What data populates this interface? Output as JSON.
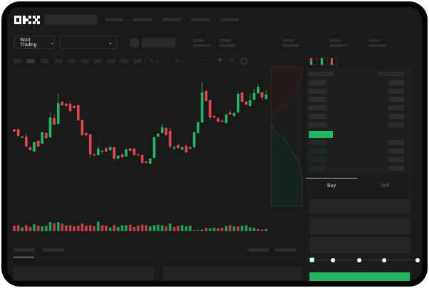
{
  "header": {
    "logo_text": "OKX"
  },
  "toolbar": {
    "market_select_label": "Spot Trading",
    "chevron": "⌄"
  },
  "trade": {
    "buy_tab": "Buy",
    "sell_tab": "Sell",
    "slider_percent": 0
  },
  "colors": {
    "up": "#22b863",
    "down": "#e0484e",
    "bg": "#1a1a1a",
    "accent": "#22b863"
  },
  "chart_data": {
    "type": "candlestick",
    "candles": [
      [
        118,
        119,
        114,
        115
      ],
      [
        118,
        119,
        108,
        109
      ],
      [
        107,
        109,
        106,
        108
      ],
      [
        108,
        113,
        93,
        94
      ],
      [
        93,
        94,
        88,
        89
      ],
      [
        87,
        101,
        86,
        100
      ],
      [
        102,
        103,
        93,
        94
      ],
      [
        98,
        115,
        97,
        114
      ],
      [
        113,
        114,
        105,
        106
      ],
      [
        107,
        143,
        106,
        135
      ],
      [
        134,
        140,
        124,
        125
      ],
      [
        126,
        168,
        125,
        155
      ],
      [
        157,
        158,
        151,
        152
      ],
      [
        154,
        155,
        150,
        151
      ],
      [
        154,
        158,
        142,
        144
      ],
      [
        151,
        152,
        147,
        148
      ],
      [
        152,
        153,
        130,
        131
      ],
      [
        131,
        132,
        109,
        110
      ],
      [
        113,
        114,
        108,
        110
      ],
      [
        111,
        112,
        78,
        83
      ],
      [
        83,
        84,
        81,
        82
      ],
      [
        82,
        94,
        81,
        91
      ],
      [
        87,
        89,
        83,
        88
      ],
      [
        91,
        94,
        86,
        87
      ],
      [
        89,
        94,
        88,
        93
      ],
      [
        93,
        94,
        74,
        77
      ],
      [
        77,
        82,
        76,
        81
      ],
      [
        83,
        84,
        78,
        79
      ],
      [
        80,
        91,
        79,
        90
      ],
      [
        91,
        92,
        87,
        88
      ],
      [
        91,
        92,
        81,
        82
      ],
      [
        83,
        84,
        81,
        82
      ],
      [
        82,
        83,
        70,
        71
      ],
      [
        73,
        74,
        70,
        71
      ],
      [
        70,
        78,
        69,
        77
      ],
      [
        78,
        108,
        77,
        107
      ],
      [
        108,
        113,
        107,
        112
      ],
      [
        113,
        126,
        112,
        121
      ],
      [
        120,
        121,
        109,
        110
      ],
      [
        116,
        120,
        92,
        94
      ],
      [
        92,
        95,
        89,
        93
      ],
      [
        96,
        97,
        91,
        92
      ],
      [
        90,
        94,
        89,
        93
      ],
      [
        95,
        97,
        85,
        86
      ],
      [
        93,
        94,
        90,
        91
      ],
      [
        93,
        115,
        92,
        114
      ],
      [
        113,
        129,
        112,
        128
      ],
      [
        128,
        185,
        127,
        170
      ],
      [
        172,
        174,
        157,
        158
      ],
      [
        159,
        160,
        131,
        135
      ],
      [
        137,
        138,
        133,
        135
      ],
      [
        134,
        135,
        127,
        129
      ],
      [
        130,
        132,
        128,
        129
      ],
      [
        127,
        140,
        126,
        139
      ],
      [
        142,
        145,
        138,
        139
      ],
      [
        137,
        142,
        136,
        141
      ],
      [
        142,
        172,
        141,
        168
      ],
      [
        170,
        171,
        156,
        157
      ],
      [
        157,
        158,
        152,
        153
      ],
      [
        151,
        167,
        150,
        159
      ],
      [
        160,
        175,
        159,
        169
      ],
      [
        169,
        182,
        168,
        178
      ],
      [
        170,
        171,
        159,
        163
      ],
      [
        161,
        173,
        160,
        167
      ]
    ],
    "volume": [
      10,
      11,
      7,
      11,
      8,
      13,
      10,
      9,
      10,
      17,
      15,
      17,
      14,
      11,
      11,
      9,
      10,
      14,
      10,
      11,
      9,
      18,
      11,
      10,
      7,
      11,
      8,
      11,
      11,
      12,
      8,
      10,
      12,
      11,
      9,
      11,
      12,
      11,
      9,
      14,
      8,
      10,
      11,
      9,
      10,
      2,
      2,
      3,
      6,
      5,
      6,
      5,
      6,
      9,
      11,
      9,
      9,
      10,
      11,
      7,
      6,
      4,
      3,
      4
    ],
    "volume_up": [
      0,
      0,
      1,
      0,
      0,
      1,
      0,
      1,
      1,
      1,
      0,
      1,
      0,
      0,
      0,
      0,
      0,
      0,
      0,
      0,
      0,
      1,
      0,
      0,
      1,
      0,
      1,
      1,
      1,
      0,
      0,
      0,
      0,
      0,
      1,
      1,
      1,
      1,
      0,
      1,
      0,
      0,
      1,
      1,
      1,
      0,
      1,
      1,
      0,
      1,
      1,
      0,
      0,
      1,
      0,
      1,
      0,
      1,
      1,
      1,
      1,
      0,
      0,
      1
    ]
  }
}
